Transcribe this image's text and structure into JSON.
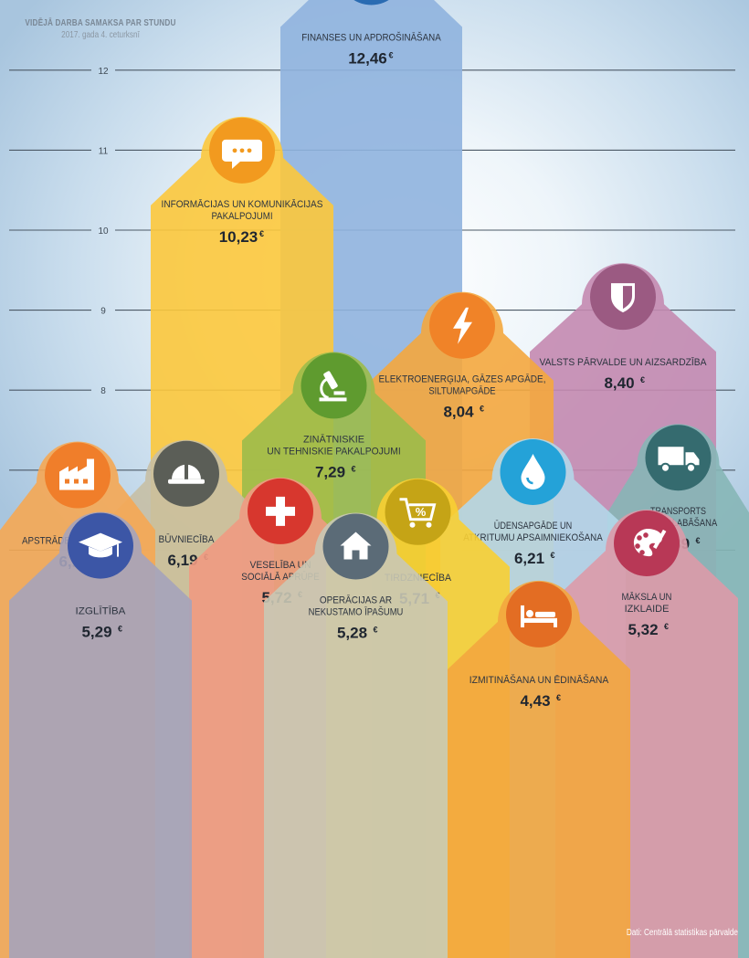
{
  "title": "VIDĒJĀ DARBA SAMAKSA PAR STUNDU",
  "subtitle": "2017. gada 4. ceturksnī",
  "source": "Dati: Centrālā statistikas pārvalde",
  "chart_data": {
    "type": "bar",
    "title": "VIDĒJĀ DARBA SAMAKSA PAR STUNDU",
    "subtitle": "2017. gada 4. ceturksnī",
    "unit": "€",
    "ylim": [
      6,
      12
    ],
    "yticks": [
      6,
      7,
      8,
      9,
      10,
      11,
      12
    ],
    "grid": true,
    "categories": [
      "FINANSES UN APDROŠINĀŠANA",
      "INFORMĀCIJAS UN KOMUNIKĀCIJAS PAKALPOJUMI",
      "VALSTS PĀRVALDE UN AIZSARDZĪBA",
      "ELEKTROENERĢIJA, GĀZES APGĀDE, SILTUMAPGĀDE",
      "ZINĀTNISKIE UN TEHNISKIE PAKALPOJUMI",
      "TRANSPORTS UN UZGLABĀŠANA",
      "ŪDENSAPGĀDE UN ATKRITUMU APSAIMNIEKOŠANA",
      "BŪVNIECĪBA",
      "APSTRĀDES RŪPNIECĪBA",
      "VESELĪBA UN SOCIĀLĀ APRŪPE",
      "TIRDZNIECĪBA",
      "MĀKSLA UN IZKLAIDE",
      "IZGLĪTĪBA",
      "OPERĀCIJAS AR NEKUSTAMO ĪPAŠUMU",
      "IZMITINĀŠANA UN ĒDINĀŠANA"
    ],
    "values": [
      12.46,
      10.23,
      8.4,
      8.04,
      7.29,
      6.39,
      6.21,
      6.19,
      6.17,
      5.72,
      5.71,
      5.32,
      5.29,
      5.28,
      4.43
    ],
    "value_labels": [
      "12,46",
      "10,23",
      "8,40",
      "8,04",
      "7,29",
      "6,39",
      "6,21",
      "6,19",
      "6,17",
      "5,72",
      "5,71",
      "5,32",
      "5,29",
      "5,28",
      "4,43"
    ],
    "items": [
      {
        "label_lines": [
          "FINANSES UN APDROŠINĀŠANA"
        ],
        "icon": "coins-icon",
        "color": "#8fb3de",
        "icon_bg": "#2a6bb2"
      },
      {
        "label_lines": [
          "INFORMĀCIJAS UN KOMUNIKĀCIJAS",
          "PAKALPOJUMI"
        ],
        "icon": "speech-bubble-icon",
        "color": "#fcc83c",
        "icon_bg": "#f29a1f"
      },
      {
        "label_lines": [
          "VALSTS PĀRVALDE UN AIZSARDZĪBA"
        ],
        "icon": "shield-icon",
        "color": "#c48ab0",
        "icon_bg": "#9b5a82"
      },
      {
        "label_lines": [
          "ELEKTROENERĢIJA, GĀZES APGĀDE,",
          "SILTUMAPGĀDE"
        ],
        "icon": "lightning-icon",
        "color": "#f4a73e",
        "icon_bg": "#f08328"
      },
      {
        "label_lines": [
          "ZINĀTNISKIE",
          "UN TEHNISKIE PAKALPOJUMI"
        ],
        "icon": "microscope-icon",
        "color": "#9cbb4a",
        "icon_bg": "#5f9b2f"
      },
      {
        "label_lines": [
          "TRANSPORTS",
          "UN UZGLABĀŠANA"
        ],
        "icon": "truck-icon",
        "color": "#86b6b6",
        "icon_bg": "#356b6f"
      },
      {
        "label_lines": [
          "ŪDENSAPGĀDE UN",
          "ATKRITUMU APSAIMNIEKOŠANA"
        ],
        "icon": "water-drop-icon",
        "color": "#b3d7e9",
        "icon_bg": "#24a2d8"
      },
      {
        "label_lines": [
          "BŪVNIECĪBA"
        ],
        "icon": "hard-hat-icon",
        "color": "#c6bfa5",
        "icon_bg": "#5b5e57"
      },
      {
        "label_lines": [
          "APSTRĀDES RŪPNIECĪBA"
        ],
        "icon": "factory-icon",
        "color": "#f5a753",
        "icon_bg": "#f07e2a"
      },
      {
        "label_lines": [
          "VESELĪBA UN",
          "SOCIĀLĀ APRŪPE"
        ],
        "icon": "medical-cross-icon",
        "color": "#ef9a82",
        "icon_bg": "#d7372e"
      },
      {
        "label_lines": [
          "TIRDZNIECĪBA"
        ],
        "icon": "shopping-cart-icon",
        "color": "#f8cf33",
        "icon_bg": "#c5a416"
      },
      {
        "label_lines": [
          "MĀKSLA UN",
          "IZKLAIDE"
        ],
        "icon": "palette-icon",
        "color": "#dc9aa8",
        "icon_bg": "#b83856"
      },
      {
        "label_lines": [
          "IZGLĪTĪBA"
        ],
        "icon": "graduation-cap-icon",
        "color": "#a5a3bb",
        "icon_bg": "#3c56a6"
      },
      {
        "label_lines": [
          "OPERĀCIJAS AR",
          "NEKUSTAMO ĪPAŠUMU"
        ],
        "icon": "house-icon",
        "color": "#c9c8b5",
        "icon_bg": "#5b6b77"
      },
      {
        "label_lines": [
          "IZMITINĀŠANA UN ĒDINĀŠANA"
        ],
        "icon": "bed-icon",
        "color": "#f3a63f",
        "icon_bg": "#e36d23"
      }
    ]
  }
}
